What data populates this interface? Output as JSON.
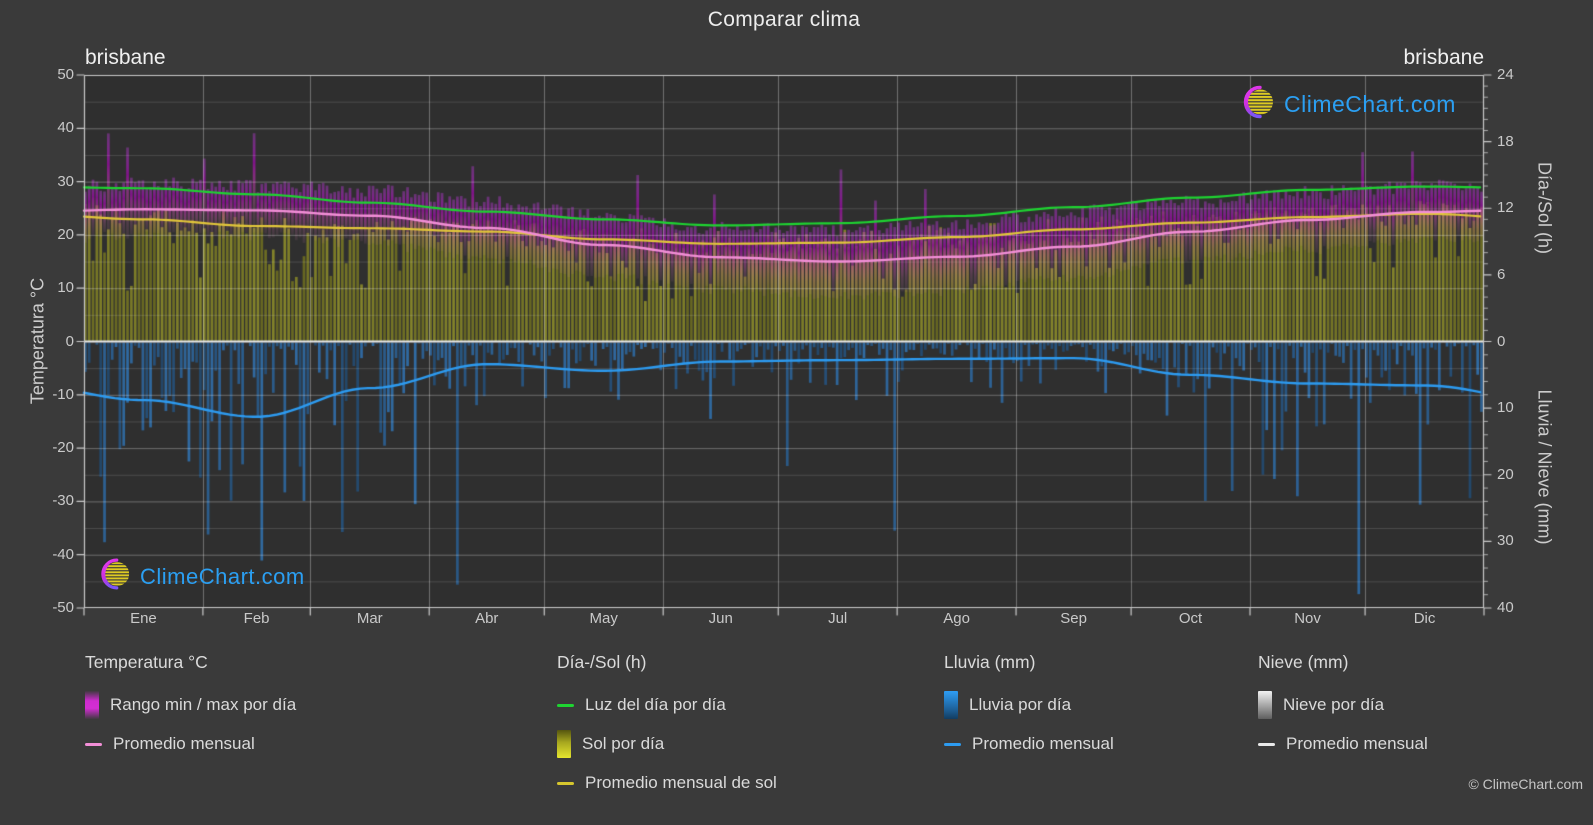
{
  "title": "Comparar clima",
  "station_left": "brisbane",
  "station_right": "brisbane",
  "watermark_text": "ClimeChart.com",
  "copyright": "© ClimeChart.com",
  "axes": {
    "temp": {
      "label": "Temperatura °C",
      "ticks": [
        50,
        40,
        30,
        20,
        10,
        0,
        -10,
        -20,
        -30,
        -40,
        -50
      ],
      "range": [
        -50,
        50
      ]
    },
    "sun": {
      "label": "Día-/Sol (h)",
      "ticks": [
        24,
        18,
        12,
        6,
        0
      ],
      "range": [
        0,
        24
      ]
    },
    "rain": {
      "label": "Lluvia / Nieve (mm)",
      "ticks": [
        10,
        20,
        30,
        40
      ],
      "range": [
        0,
        40
      ]
    },
    "months": [
      "Ene",
      "Feb",
      "Mar",
      "Abr",
      "May",
      "Jun",
      "Jul",
      "Ago",
      "Sep",
      "Oct",
      "Nov",
      "Dic"
    ]
  },
  "legend": {
    "columns": [
      {
        "title": "Temperatura °C",
        "items": [
          {
            "swatch": "bar-magenta",
            "label": "Rango min / max por día"
          },
          {
            "swatch": "line-pink",
            "label": "Promedio mensual"
          }
        ]
      },
      {
        "title": "Día-/Sol (h)",
        "items": [
          {
            "swatch": "line-green",
            "label": "Luz del día por día"
          },
          {
            "swatch": "bar-yellow",
            "label": "Sol por día"
          },
          {
            "swatch": "line-yellow",
            "label": "Promedio mensual de sol"
          }
        ]
      },
      {
        "title": "Lluvia (mm)",
        "items": [
          {
            "swatch": "bar-blue",
            "label": "Lluvia por día"
          },
          {
            "swatch": "line-blue",
            "label": "Promedio mensual"
          }
        ]
      },
      {
        "title": "Nieve (mm)",
        "items": [
          {
            "swatch": "bar-white",
            "label": "Nieve por día"
          },
          {
            "swatch": "line-white",
            "label": "Promedio mensual"
          }
        ]
      }
    ]
  },
  "colors": {
    "page_bg": "#3a3a3a",
    "plot_bg": "#2f2f2f",
    "grid": "#ffffff",
    "daylight_line": "#1ed431",
    "sun_avg_line": "#e2c73a",
    "temp_avg_line": "#f28fd7",
    "rain_avg_line": "#2d9bf0",
    "temp_range_bar": "#cf2fd0",
    "sun_bar": "#94942a",
    "rain_bar": "#2a6ba8",
    "watermark_blue": "#2b9ff2",
    "zero_line": "#e8e8e8"
  },
  "chart_data": {
    "type": "area",
    "title": "Comparar clima",
    "station": "brisbane",
    "x_categories": [
      "Ene",
      "Feb",
      "Mar",
      "Abr",
      "May",
      "Jun",
      "Jul",
      "Ago",
      "Sep",
      "Oct",
      "Nov",
      "Dic"
    ],
    "ylim_temp_c": [
      -50,
      50
    ],
    "ylim_sun_h": [
      0,
      24
    ],
    "ylim_rain_mm": [
      0,
      40
    ],
    "grid": true,
    "legend_position": "bottom",
    "series": [
      {
        "name": "daylight_hours_per_day",
        "unit": "h",
        "values": [
          13.8,
          13.25,
          12.5,
          11.7,
          11.0,
          10.45,
          10.65,
          11.3,
          12.1,
          12.95,
          13.65,
          13.95
        ]
      },
      {
        "name": "sun_hours_monthly_avg",
        "unit": "h",
        "values": [
          11.0,
          10.4,
          10.2,
          9.9,
          9.2,
          8.8,
          8.9,
          9.4,
          10.1,
          10.7,
          11.2,
          11.5
        ]
      },
      {
        "name": "temp_daily_max_mean",
        "unit": "°C",
        "values": [
          29.4,
          29.0,
          28.1,
          26.1,
          23.4,
          21.1,
          20.6,
          21.9,
          24.2,
          26.1,
          27.8,
          29.0
        ]
      },
      {
        "name": "temp_daily_min_mean",
        "unit": "°C",
        "values": [
          20.8,
          20.6,
          19.2,
          16.2,
          12.9,
          10.6,
          9.4,
          10.2,
          13.0,
          15.9,
          18.1,
          19.8
        ]
      },
      {
        "name": "temp_monthly_avg",
        "unit": "°C",
        "values": [
          24.8,
          24.6,
          23.6,
          21.3,
          18.1,
          15.8,
          15.0,
          15.9,
          17.8,
          20.6,
          22.8,
          24.3
        ]
      },
      {
        "name": "rain_mm_per_day_monthly_avg",
        "unit": "mm",
        "values": [
          8.8,
          11.3,
          7.0,
          3.4,
          4.4,
          3.0,
          2.8,
          2.6,
          2.5,
          5.0,
          6.3,
          6.6
        ]
      },
      {
        "name": "snow_mm_per_day_monthly_avg",
        "unit": "mm",
        "values": [
          0,
          0,
          0,
          0,
          0,
          0,
          0,
          0,
          0,
          0,
          0,
          0
        ]
      }
    ]
  }
}
